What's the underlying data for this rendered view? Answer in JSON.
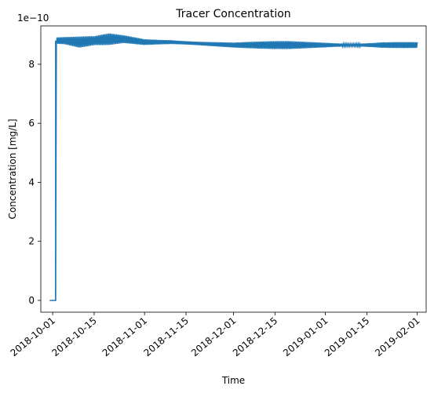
{
  "chart_data": {
    "type": "line",
    "title": "Tracer Concentration",
    "xlabel": "Time",
    "ylabel": "Concentration [mg/L]",
    "y_offset_label": "1e−10",
    "y_scale_exponent": -10,
    "xlim": [
      "2018-09-27",
      "2019-02-04"
    ],
    "ylim": [
      -4e-11,
      9.3e-10
    ],
    "x_ticks": [
      "2018-10-01",
      "2018-10-15",
      "2018-11-01",
      "2018-11-15",
      "2018-12-01",
      "2018-12-15",
      "2019-01-01",
      "2019-01-15",
      "2019-02-01"
    ],
    "y_ticks": [
      0,
      2e-10,
      4e-10,
      6e-10,
      8e-10
    ],
    "y_tick_labels": [
      "0",
      "2",
      "4",
      "6",
      "8"
    ],
    "grid": false,
    "series": [
      {
        "color": "#1f77b4",
        "x": [
          "2018-09-30",
          "2018-10-01",
          "2018-10-02",
          "2018-10-02",
          "2018-10-02",
          "2018-10-02",
          "2018-10-05",
          "2018-10-10",
          "2018-10-15",
          "2018-10-20",
          "2018-10-25",
          "2018-11-01",
          "2018-11-10",
          "2018-11-20",
          "2018-12-01",
          "2018-12-10",
          "2018-12-20",
          "2019-01-01",
          "2019-01-10",
          "2019-01-20",
          "2019-02-01"
        ],
        "y": [
          0,
          0,
          0,
          2.9e-10,
          5.9e-10,
          8.8e-10,
          8.8e-10,
          8.75e-10,
          8.8e-10,
          8.85e-10,
          8.85e-10,
          8.75e-10,
          8.75e-10,
          8.7e-10,
          8.65e-10,
          8.65e-10,
          8.65e-10,
          8.65e-10,
          8.65e-10,
          8.65e-10,
          8.65e-10
        ],
        "band_amplitude": [
          0,
          0,
          0,
          0,
          0,
          1.5e-11,
          1.5e-11,
          2e-11,
          1.5e-11,
          2e-11,
          1.5e-11,
          1.5e-11,
          1.5e-11,
          1.2e-11,
          1e-11,
          1.2e-11,
          1.5e-11,
          1.5e-11,
          1e-11,
          1.5e-11,
          1e-11
        ]
      }
    ]
  }
}
